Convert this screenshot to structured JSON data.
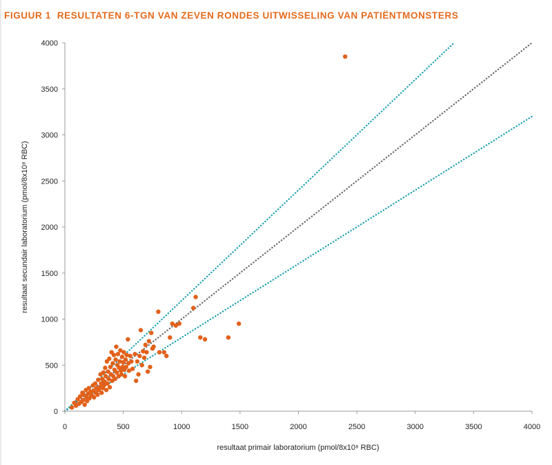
{
  "figure": {
    "number": "FIGUUR 1",
    "title": "RESULTATEN 6-TGN VAN ZEVEN RONDES UITWISSELING VAN PATIËNTMONSTERS"
  },
  "colors": {
    "title": "#e46a1c",
    "points": "#e2611a",
    "identity_line": "#6b6b6b",
    "limit_lines": "#1fa0ad",
    "axis": "#9a9a9a"
  },
  "chart_data": {
    "type": "scatter",
    "xlabel": "resultaat primair laboratorium (pmol/8x10⁸ RBC)",
    "ylabel": "resultaat secundair laboratorium (pmol/8x10⁸ RBC)",
    "xlim": [
      0,
      4000
    ],
    "ylim": [
      0,
      4000
    ],
    "xticks": [
      0,
      500,
      1000,
      1500,
      2000,
      2500,
      3000,
      3500,
      4000
    ],
    "yticks": [
      0,
      500,
      1000,
      1500,
      2000,
      2500,
      3000,
      3500,
      4000
    ],
    "grid": false,
    "reference_lines": [
      {
        "style": "dotted",
        "color": "#6b6b6b",
        "x": [
          0,
          4000
        ],
        "y": [
          0,
          4000
        ]
      },
      {
        "style": "dotted",
        "color": "#1fa0ad",
        "x": [
          0,
          3333
        ],
        "y": [
          0,
          4000
        ]
      },
      {
        "style": "dotted",
        "color": "#1fa0ad",
        "x": [
          0,
          4000
        ],
        "y": [
          0,
          3200
        ]
      }
    ],
    "points": [
      [
        60,
        40
      ],
      [
        80,
        90
      ],
      [
        95,
        60
      ],
      [
        110,
        130
      ],
      [
        120,
        80
      ],
      [
        130,
        160
      ],
      [
        140,
        100
      ],
      [
        150,
        200
      ],
      [
        155,
        120
      ],
      [
        160,
        180
      ],
      [
        170,
        70
      ],
      [
        180,
        230
      ],
      [
        185,
        150
      ],
      [
        190,
        110
      ],
      [
        200,
        190
      ],
      [
        205,
        250
      ],
      [
        210,
        140
      ],
      [
        220,
        210
      ],
      [
        230,
        170
      ],
      [
        240,
        280
      ],
      [
        245,
        220
      ],
      [
        250,
        150
      ],
      [
        260,
        300
      ],
      [
        265,
        200
      ],
      [
        270,
        250
      ],
      [
        280,
        180
      ],
      [
        285,
        340
      ],
      [
        290,
        230
      ],
      [
        300,
        260
      ],
      [
        305,
        400
      ],
      [
        310,
        300
      ],
      [
        315,
        200
      ],
      [
        320,
        350
      ],
      [
        325,
        250
      ],
      [
        330,
        420
      ],
      [
        335,
        280
      ],
      [
        340,
        320
      ],
      [
        345,
        470
      ],
      [
        350,
        380
      ],
      [
        355,
        230
      ],
      [
        360,
        540
      ],
      [
        365,
        300
      ],
      [
        370,
        430
      ],
      [
        375,
        350
      ],
      [
        380,
        570
      ],
      [
        385,
        260
      ],
      [
        390,
        480
      ],
      [
        395,
        400
      ],
      [
        400,
        640
      ],
      [
        405,
        330
      ],
      [
        410,
        520
      ],
      [
        415,
        380
      ],
      [
        420,
        610
      ],
      [
        425,
        450
      ],
      [
        430,
        350
      ],
      [
        435,
        560
      ],
      [
        440,
        700
      ],
      [
        445,
        420
      ],
      [
        450,
        500
      ],
      [
        455,
        620
      ],
      [
        460,
        380
      ],
      [
        465,
        470
      ],
      [
        470,
        540
      ],
      [
        475,
        660
      ],
      [
        480,
        440
      ],
      [
        485,
        400
      ],
      [
        490,
        590
      ],
      [
        495,
        480
      ],
      [
        500,
        530
      ],
      [
        505,
        640
      ],
      [
        510,
        450
      ],
      [
        515,
        380
      ],
      [
        520,
        560
      ],
      [
        525,
        480
      ],
      [
        530,
        610
      ],
      [
        540,
        780
      ],
      [
        545,
        520
      ],
      [
        550,
        440
      ],
      [
        560,
        600
      ],
      [
        570,
        540
      ],
      [
        580,
        460
      ],
      [
        600,
        620
      ],
      [
        610,
        330
      ],
      [
        620,
        540
      ],
      [
        630,
        400
      ],
      [
        640,
        600
      ],
      [
        650,
        880
      ],
      [
        660,
        500
      ],
      [
        670,
        650
      ],
      [
        680,
        580
      ],
      [
        690,
        720
      ],
      [
        700,
        640
      ],
      [
        710,
        430
      ],
      [
        720,
        760
      ],
      [
        730,
        480
      ],
      [
        740,
        850
      ],
      [
        750,
        680
      ],
      [
        760,
        700
      ],
      [
        800,
        1080
      ],
      [
        810,
        640
      ],
      [
        850,
        640
      ],
      [
        870,
        600
      ],
      [
        900,
        800
      ],
      [
        920,
        950
      ],
      [
        950,
        930
      ],
      [
        980,
        950
      ],
      [
        1100,
        1120
      ],
      [
        1120,
        1240
      ],
      [
        1160,
        800
      ],
      [
        1200,
        780
      ],
      [
        1400,
        800
      ],
      [
        1490,
        950
      ],
      [
        2400,
        3850
      ]
    ]
  }
}
